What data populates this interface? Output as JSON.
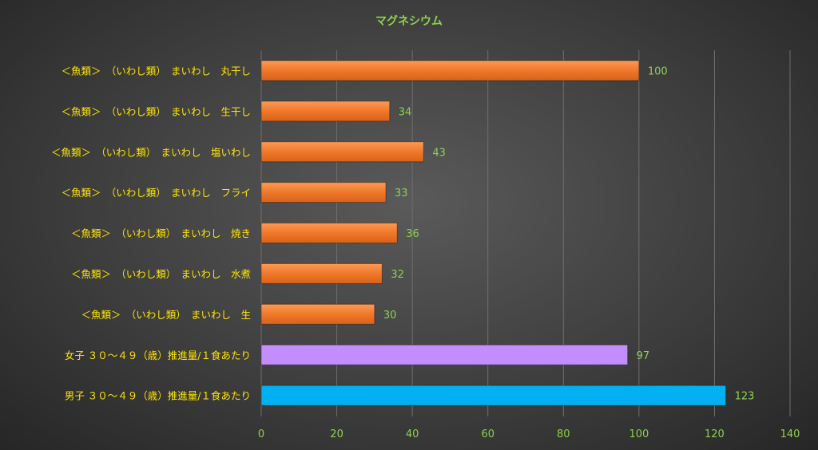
{
  "colors": {
    "background": "#404040",
    "title": "#8fd14f",
    "category_label": "#ffe600",
    "tick_label": "#8fd14f",
    "data_label": "#8fd14f",
    "gridline": "#6e6e6e",
    "fish_bar": "#f0782a",
    "female_bar": "#c28dfc",
    "male_bar": "#00b0f0"
  },
  "chart_data": {
    "type": "bar",
    "orientation": "horizontal",
    "title": "マグネシウム",
    "xlabel": "",
    "ylabel": "",
    "xlim": [
      0,
      140
    ],
    "xticks": [
      "0",
      "20",
      "40",
      "60",
      "80",
      "100",
      "120",
      "140"
    ],
    "grid": true,
    "legend": "none",
    "categories": [
      "＜魚類＞　（いわし類）　まいわし　丸干し",
      "＜魚類＞　（いわし類）　まいわし　生干し",
      "＜魚類＞　（いわし類）　まいわし　塩いわし",
      "＜魚類＞　（いわし類）　まいわし　フライ",
      "＜魚類＞　（いわし類）　まいわし　焼き",
      "＜魚類＞　（いわし類）　まいわし　水煮",
      "＜魚類＞　（いわし類）　まいわし　生",
      "女子 ３０～４９（歳）推進量/１食あたり",
      "男子 ３０～４９（歳）推進量/１食あたり"
    ],
    "values": [
      100,
      34,
      43,
      33,
      36,
      32,
      30,
      97,
      123
    ],
    "data_labels": [
      "100",
      "34",
      "43",
      "33",
      "36",
      "32",
      "30",
      "97",
      "123"
    ],
    "bar_colors": [
      "#f0782a",
      "#f0782a",
      "#f0782a",
      "#f0782a",
      "#f0782a",
      "#f0782a",
      "#f0782a",
      "#c28dfc",
      "#00b0f0"
    ]
  }
}
